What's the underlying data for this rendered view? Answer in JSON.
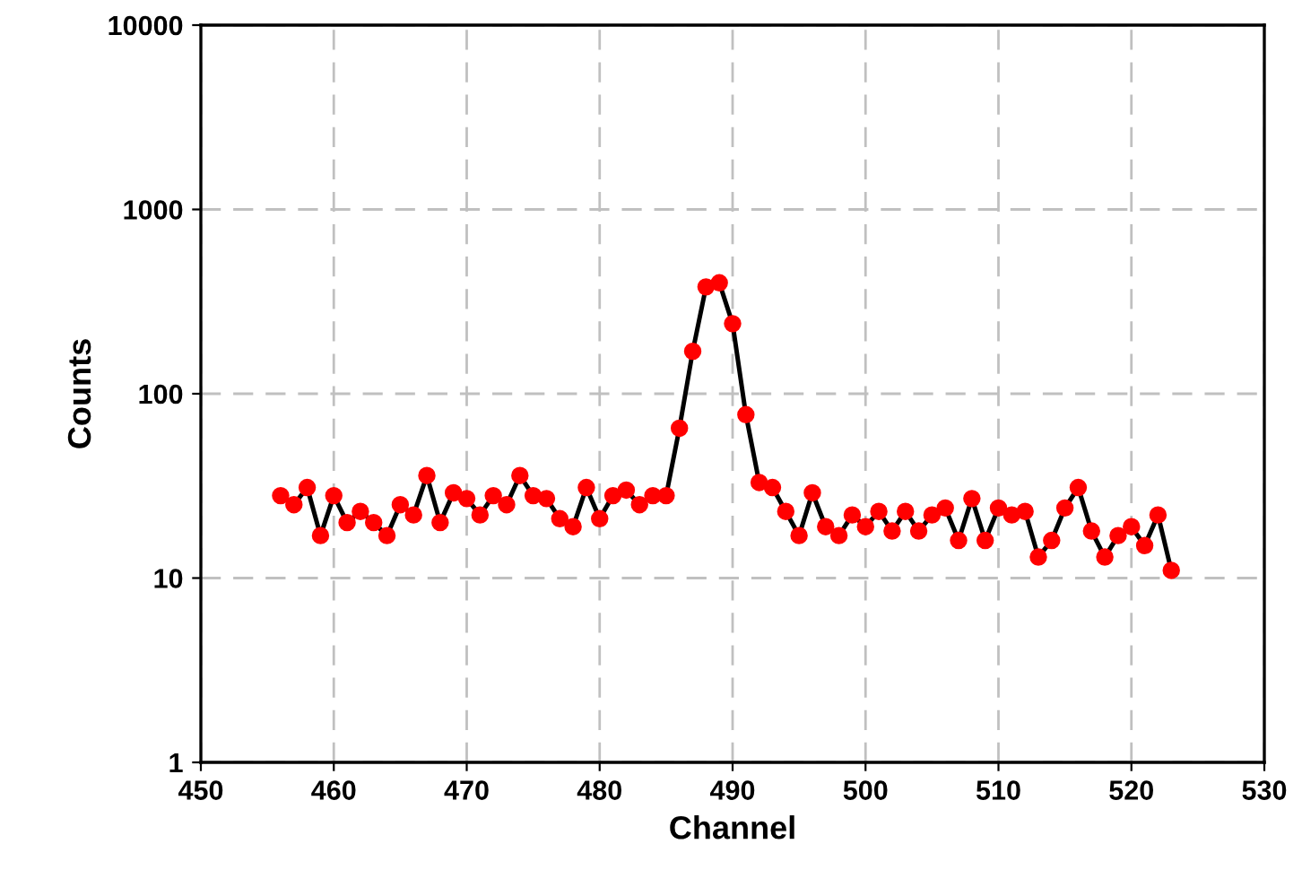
{
  "chart_data": {
    "type": "line",
    "xlabel": "Channel",
    "ylabel": "Counts",
    "log": "y",
    "grid": true,
    "marker": "circle",
    "line_style": "solid",
    "xlim": [
      450,
      530
    ],
    "xticks": [
      450,
      460,
      470,
      480,
      490,
      500,
      510,
      520,
      530
    ],
    "ylim": [
      1,
      10000
    ],
    "yticks": [
      1,
      10,
      100,
      1000,
      10000
    ],
    "x": [
      456,
      457,
      458,
      459,
      460,
      461,
      462,
      463,
      464,
      465,
      466,
      467,
      468,
      469,
      470,
      471,
      472,
      473,
      474,
      475,
      476,
      477,
      478,
      479,
      480,
      481,
      482,
      483,
      484,
      485,
      486,
      487,
      488,
      489,
      490,
      491,
      492,
      493,
      494,
      495,
      496,
      497,
      498,
      499,
      500,
      501,
      502,
      503,
      504,
      505,
      506,
      507,
      508,
      509,
      510,
      511,
      512,
      513,
      514,
      515,
      516,
      517,
      518,
      519,
      520,
      521,
      522,
      523
    ],
    "series": [
      {
        "color": "#ff0000",
        "values": [
          28,
          25,
          31,
          17,
          28,
          20,
          23,
          20,
          17,
          25,
          22,
          36,
          20,
          29,
          27,
          22,
          28,
          25,
          36,
          28,
          27,
          21,
          19,
          31,
          21,
          28,
          30,
          25,
          28,
          28,
          65,
          170,
          380,
          400,
          240,
          77,
          33,
          31,
          23,
          17,
          29,
          19,
          17,
          22,
          19,
          23,
          18,
          23,
          18,
          22,
          24,
          16,
          27,
          16,
          24,
          22,
          23,
          13,
          16,
          24,
          31,
          18,
          13,
          17,
          19,
          15,
          22,
          11
        ]
      }
    ]
  }
}
